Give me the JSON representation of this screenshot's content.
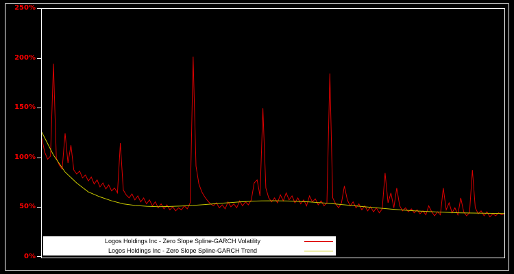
{
  "figure": {
    "background": "#000000",
    "frame_color": "#ffffff"
  },
  "y_axis": {
    "color": "#ff0000",
    "ticks": [
      "250%",
      "200%",
      "150%",
      "100%",
      "50%",
      "0%"
    ]
  },
  "legend": {
    "background": "#ffffff",
    "text_color": "#000000"
  },
  "chart_data": {
    "type": "line",
    "title": "",
    "xlabel": "",
    "ylabel": "",
    "ylim": [
      0,
      250
    ],
    "y_tick_labels": [
      "0%",
      "50%",
      "100%",
      "150%",
      "200%",
      "250%"
    ],
    "x_range": [
      0,
      159
    ],
    "grid": false,
    "legend_position": "bottom-inside",
    "series": [
      {
        "name": "Logos Holdings Inc - Zero Slope Spline-GARCH Volatility",
        "color": "#dd0000",
        "values": [
          120,
          106,
          99,
          102,
          195,
          100,
          93,
          89,
          125,
          95,
          113,
          88,
          84,
          87,
          80,
          83,
          77,
          81,
          74,
          78,
          71,
          75,
          69,
          73,
          67,
          70,
          65,
          115,
          68,
          63,
          60,
          64,
          58,
          62,
          56,
          60,
          54,
          58,
          52,
          56,
          50,
          54,
          49,
          53,
          48,
          51,
          47,
          50,
          48,
          52,
          49,
          55,
          202,
          92,
          74,
          66,
          61,
          57,
          54,
          52,
          55,
          50,
          53,
          49,
          56,
          51,
          54,
          50,
          57,
          52,
          56,
          53,
          58,
          75,
          78,
          62,
          150,
          70,
          60,
          56,
          60,
          55,
          63,
          57,
          65,
          58,
          62,
          55,
          60,
          54,
          58,
          52,
          62,
          56,
          59,
          53,
          57,
          52,
          55,
          185,
          60,
          54,
          50,
          55,
          72,
          58,
          52,
          56,
          50,
          54,
          48,
          52,
          47,
          51,
          46,
          50,
          45,
          49,
          85,
          55,
          65,
          50,
          70,
          52,
          47,
          50,
          46,
          49,
          45,
          48,
          44,
          47,
          43,
          52,
          46,
          42,
          46,
          43,
          70,
          48,
          55,
          45,
          50,
          43,
          60,
          46,
          42,
          45,
          88,
          50,
          44,
          47,
          42,
          46,
          41,
          44,
          42,
          45,
          43,
          44
        ]
      },
      {
        "name": "Logos Holdings Inc - Zero Slope Spline-GARCH Trend",
        "color": "#cccc00",
        "x": [
          0,
          4,
          8,
          12,
          16,
          20,
          24,
          28,
          32,
          36,
          40,
          44,
          48,
          52,
          56,
          60,
          64,
          68,
          72,
          76,
          80,
          84,
          88,
          92,
          96,
          100,
          104,
          108,
          112,
          116,
          120,
          124,
          128,
          132,
          136,
          140,
          144,
          148,
          152,
          156,
          159
        ],
        "values": [
          126,
          103,
          86,
          75,
          66,
          61,
          57,
          54,
          52.4,
          51.6,
          51.2,
          51.4,
          51.8,
          52.4,
          53.3,
          54.2,
          55.1,
          56,
          56.6,
          57,
          57.1,
          56.9,
          56.5,
          55.9,
          55.1,
          54.1,
          53,
          51.9,
          50.8,
          49.7,
          48.7,
          47.8,
          47,
          46.4,
          45.8,
          45.4,
          45,
          44.8,
          44.6,
          44.4,
          44.3
        ]
      }
    ]
  }
}
